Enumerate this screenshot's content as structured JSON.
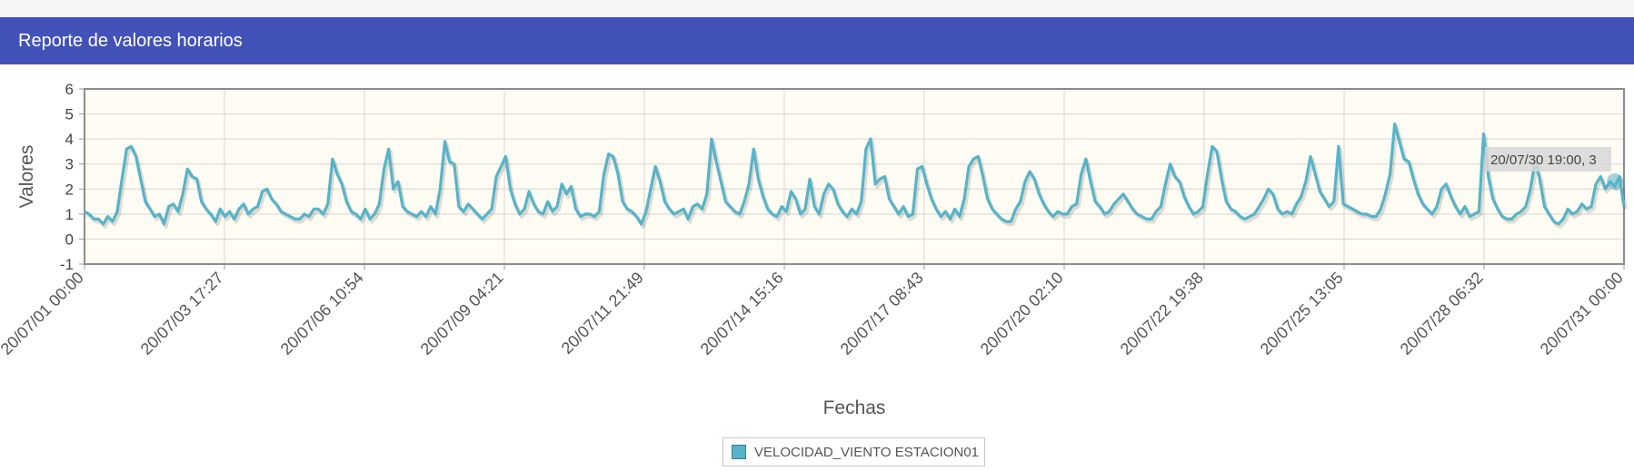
{
  "header": {
    "title": "Reporte de valores horarios"
  },
  "colors": {
    "header_bg": "#4352b9",
    "series": "#55b4c9",
    "plot_bg": "#fffcf3"
  },
  "tooltip": {
    "text": "20/07/30 19:00, 3"
  },
  "chart_data": {
    "type": "line",
    "ylabel": "Valores",
    "xlabel": "Fechas",
    "ylim": [
      -1,
      6
    ],
    "yticks": [
      "6",
      "5",
      "4",
      "3",
      "2",
      "1",
      "0",
      "-1"
    ],
    "xticks": [
      "20/07/01 00:00",
      "20/07/03 17:27",
      "20/07/06 10:54",
      "20/07/09 04:21",
      "20/07/11 21:49",
      "20/07/14 15:16",
      "20/07/17 08:43",
      "20/07/20 02:10",
      "20/07/22 19:38",
      "20/07/25 13:05",
      "20/07/28 06:32",
      "20/07/31 00:00"
    ],
    "grid": true,
    "legend_position": "bottom",
    "series": [
      {
        "name": "VELOCIDAD_VIENTO ESTACION01",
        "x_start": "20/07/01 00:00",
        "x_end": "20/07/31 00:00",
        "values": [
          1.1,
          1.0,
          0.8,
          0.8,
          0.6,
          0.9,
          0.7,
          1.1,
          2.4,
          3.6,
          3.7,
          3.3,
          2.4,
          1.5,
          1.2,
          0.9,
          1.0,
          0.6,
          1.3,
          1.4,
          1.1,
          1.8,
          2.8,
          2.5,
          2.4,
          1.5,
          1.2,
          1.0,
          0.7,
          1.2,
          0.9,
          1.1,
          0.8,
          1.2,
          1.4,
          1.0,
          1.2,
          1.3,
          1.9,
          2.0,
          1.6,
          1.4,
          1.1,
          1.0,
          0.9,
          0.8,
          0.8,
          1.0,
          0.9,
          1.2,
          1.2,
          1.0,
          1.4,
          3.2,
          2.6,
          2.2,
          1.5,
          1.1,
          1.0,
          0.8,
          1.2,
          0.8,
          1.0,
          1.4,
          2.8,
          3.6,
          2.0,
          2.3,
          1.3,
          1.1,
          1.0,
          0.9,
          1.1,
          0.9,
          1.3,
          1.0,
          2.0,
          3.9,
          3.1,
          3.0,
          1.3,
          1.1,
          1.4,
          1.2,
          1.0,
          0.8,
          1.0,
          1.2,
          2.5,
          2.9,
          3.3,
          2.0,
          1.4,
          1.0,
          1.2,
          1.9,
          1.4,
          1.1,
          1.0,
          1.5,
          1.1,
          1.3,
          2.2,
          1.8,
          2.1,
          1.2,
          0.9,
          1.0,
          1.0,
          0.9,
          1.1,
          2.6,
          3.4,
          3.3,
          2.6,
          1.5,
          1.2,
          1.1,
          0.9,
          0.6,
          1.1,
          2.0,
          2.9,
          2.3,
          1.5,
          1.2,
          1.0,
          1.1,
          1.2,
          0.8,
          1.3,
          1.4,
          1.2,
          1.8,
          4.0,
          3.1,
          2.3,
          1.5,
          1.3,
          1.1,
          1.0,
          1.5,
          2.2,
          3.6,
          2.4,
          1.7,
          1.2,
          1.0,
          0.9,
          1.3,
          1.1,
          1.9,
          1.6,
          1.0,
          1.2,
          2.4,
          1.3,
          1.0,
          1.8,
          2.2,
          2.0,
          1.4,
          1.1,
          0.9,
          1.2,
          1.0,
          1.5,
          3.6,
          4.0,
          2.2,
          2.4,
          2.5,
          1.6,
          1.3,
          1.0,
          1.3,
          0.9,
          1.0,
          2.8,
          2.9,
          2.2,
          1.6,
          1.2,
          0.9,
          1.1,
          0.8,
          1.2,
          0.9,
          1.6,
          2.9,
          3.2,
          3.3,
          2.5,
          1.6,
          1.2,
          1.0,
          0.8,
          0.7,
          0.7,
          1.2,
          1.5,
          2.3,
          2.7,
          2.4,
          1.8,
          1.4,
          1.1,
          0.9,
          1.1,
          1.0,
          1.0,
          1.3,
          1.4,
          2.6,
          3.2,
          2.3,
          1.5,
          1.3,
          1.0,
          1.1,
          1.4,
          1.6,
          1.8,
          1.5,
          1.2,
          1.0,
          0.9,
          0.8,
          0.8,
          1.1,
          1.3,
          2.2,
          3.0,
          2.5,
          2.3,
          1.7,
          1.3,
          1.0,
          1.1,
          1.3,
          2.6,
          3.7,
          3.5,
          2.4,
          1.5,
          1.2,
          1.1,
          0.9,
          0.8,
          0.9,
          1.0,
          1.3,
          1.6,
          2.0,
          1.8,
          1.2,
          1.0,
          1.1,
          1.0,
          1.4,
          1.7,
          2.3,
          3.3,
          2.6,
          1.9,
          1.6,
          1.3,
          1.5,
          3.7,
          1.4,
          1.3,
          1.2,
          1.1,
          1.0,
          1.0,
          0.9,
          0.9,
          1.2,
          1.8,
          2.6,
          4.6,
          3.9,
          3.2,
          3.1,
          2.4,
          1.8,
          1.4,
          1.2,
          1.0,
          1.3,
          2.0,
          2.2,
          1.7,
          1.3,
          1.0,
          1.3,
          0.9,
          1.0,
          1.1,
          4.2,
          2.5,
          1.6,
          1.2,
          0.9,
          0.8,
          0.8,
          1.0,
          1.1,
          1.3,
          2.0,
          3.1,
          2.4,
          1.3,
          1.0,
          0.7,
          0.6,
          0.8,
          1.2,
          1.0,
          1.1,
          1.4,
          1.2,
          1.3,
          2.2,
          2.5,
          2.0,
          2.3,
          2.1,
          2.5,
          1.3
        ]
      }
    ]
  }
}
